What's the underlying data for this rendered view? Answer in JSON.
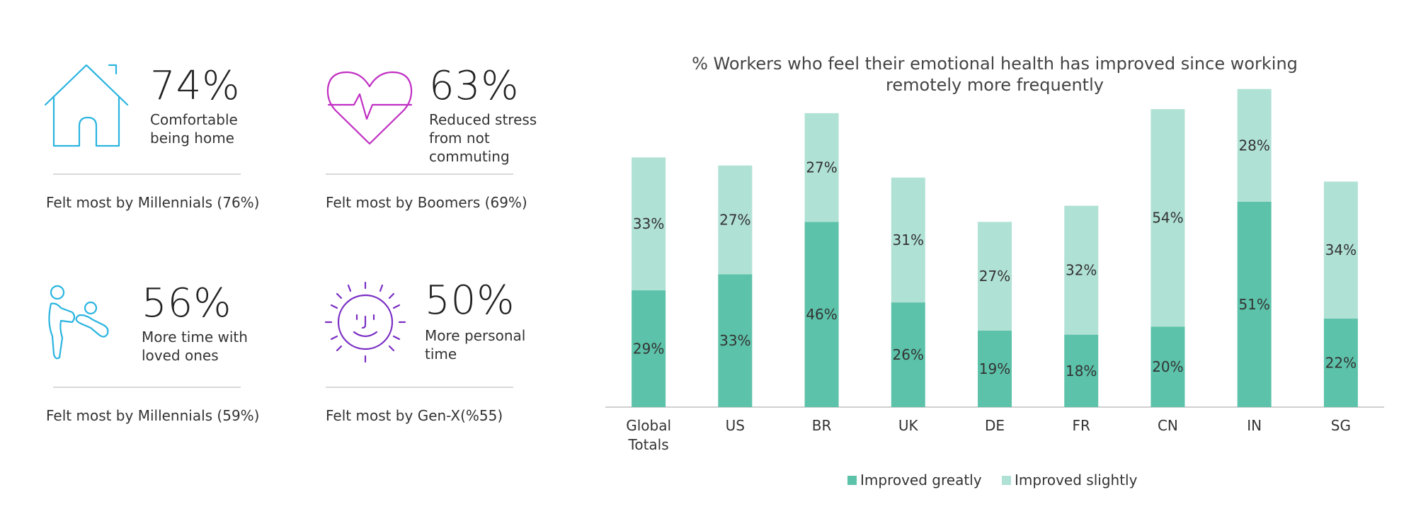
{
  "colors": {
    "teal_icon": "#2ab4e0",
    "magenta_icon": "#c02ec3",
    "purple_icon": "#7a2ec3",
    "improved_greatly": "#5cc2a9",
    "improved_slightly": "#b0e1d5",
    "axis": "#d0d0d0"
  },
  "stats": [
    {
      "value": "74%",
      "desc_lines": [
        "Comfortable",
        "being home"
      ],
      "note": "Felt most by Millennials (76%)",
      "icon": "house-icon"
    },
    {
      "value": "63%",
      "desc_lines": [
        "Reduced stress",
        "from not",
        "commuting"
      ],
      "note": "Felt most by Boomers (69%)",
      "icon": "heart-pulse-icon"
    },
    {
      "value": "56%",
      "desc_lines": [
        "More time with",
        "loved ones"
      ],
      "note": "Felt most by Millennials (59%)",
      "icon": "family-icon"
    },
    {
      "value": "50%",
      "desc_lines": [
        "More personal",
        "time"
      ],
      "note": "Felt most by Gen-X(%55)",
      "icon": "sun-face-icon"
    }
  ],
  "chart_data": {
    "type": "bar",
    "stacked": true,
    "title_lines": [
      "% Workers who feel their emotional health has improved since working",
      "remotely more frequently"
    ],
    "categories": [
      [
        "Global",
        "Totals"
      ],
      [
        "US"
      ],
      [
        "BR"
      ],
      [
        "UK"
      ],
      [
        "DE"
      ],
      [
        "FR"
      ],
      [
        "CN"
      ],
      [
        "IN"
      ],
      [
        "SG"
      ]
    ],
    "series": [
      {
        "name": "Improved greatly",
        "values": [
          29,
          33,
          46,
          26,
          19,
          18,
          20,
          51,
          22
        ],
        "labels": [
          "29%",
          "33%",
          "46%",
          "26%",
          "19%",
          "18%",
          "20%",
          "51%",
          "22%"
        ]
      },
      {
        "name": "Improved slightly",
        "values": [
          33,
          27,
          27,
          31,
          27,
          32,
          54,
          28,
          34
        ],
        "labels": [
          "33%",
          "27%",
          "27%",
          "31%",
          "27%",
          "32%",
          "54%",
          "28%",
          "34%"
        ]
      }
    ],
    "ylim": [
      0,
      80
    ],
    "legend_position": "bottom",
    "grid": false
  }
}
